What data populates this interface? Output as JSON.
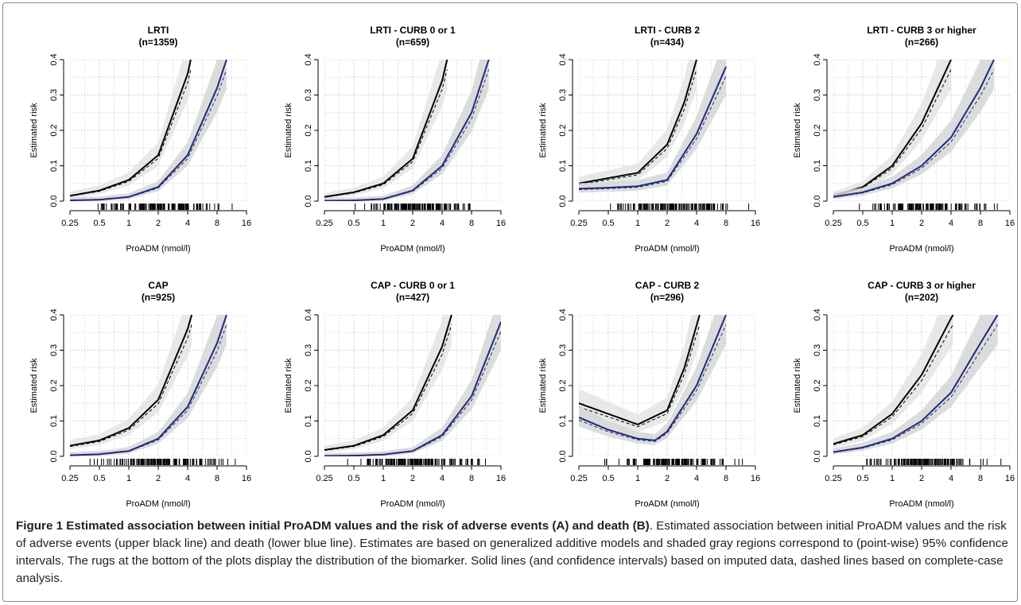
{
  "chart_data": [
    {
      "type": "line",
      "title": "LRTI",
      "subtitle": "(n=1359)",
      "xlabel": "ProADM (nmol/l)",
      "ylabel": "Estimated risk",
      "xscale": "log2",
      "xlim": [
        0.25,
        16
      ],
      "ylim": [
        0,
        0.4
      ],
      "xticks": [
        "0.25",
        "0.5",
        "1",
        "2",
        "4",
        "8",
        "16"
      ],
      "yticks": [
        "0.0",
        "0.1",
        "0.2",
        "0.3",
        "0.4"
      ],
      "grid": true,
      "series": [
        {
          "role": "adverse events",
          "line": "solid",
          "color": "#000000",
          "x": [
            0.25,
            0.5,
            1,
            2,
            4,
            4.3
          ],
          "y": [
            0.015,
            0.03,
            0.06,
            0.13,
            0.36,
            0.4
          ]
        },
        {
          "role": "death",
          "line": "solid",
          "color": "#1f2a7a",
          "x": [
            0.25,
            0.5,
            1,
            2,
            4,
            8,
            10
          ],
          "y": [
            0.002,
            0.004,
            0.012,
            0.04,
            0.13,
            0.32,
            0.4
          ]
        }
      ]
    },
    {
      "type": "line",
      "title": "LRTI - CURB 0 or 1",
      "subtitle": "(n=659)",
      "xlabel": "ProADM (nmol/l)",
      "ylabel": "Estimated risk",
      "xscale": "log2",
      "xlim": [
        0.25,
        16
      ],
      "ylim": [
        0,
        0.4
      ],
      "xticks": [
        "0.25",
        "0.5",
        "1",
        "2",
        "4",
        "8",
        "16"
      ],
      "yticks": [
        "0.0",
        "0.1",
        "0.2",
        "0.3",
        "0.4"
      ],
      "grid": true,
      "series": [
        {
          "role": "adverse events",
          "line": "solid",
          "color": "#000000",
          "x": [
            0.25,
            0.5,
            1,
            2,
            4,
            4.5
          ],
          "y": [
            0.012,
            0.025,
            0.05,
            0.12,
            0.34,
            0.4
          ]
        },
        {
          "role": "death",
          "line": "solid",
          "color": "#1f2a7a",
          "x": [
            0.25,
            0.5,
            1,
            2,
            4,
            8,
            12
          ],
          "y": [
            0.001,
            0.002,
            0.006,
            0.03,
            0.1,
            0.25,
            0.4
          ]
        }
      ]
    },
    {
      "type": "line",
      "title": "LRTI - CURB 2",
      "subtitle": "(n=434)",
      "xlabel": "ProADM (nmol/l)",
      "ylabel": "Estimated risk",
      "xscale": "log2",
      "xlim": [
        0.25,
        16
      ],
      "ylim": [
        0,
        0.4
      ],
      "xticks": [
        "0.25",
        "0.5",
        "1",
        "2",
        "4",
        "8",
        "16"
      ],
      "yticks": [
        "0.0",
        "0.1",
        "0.2",
        "0.3",
        "0.4"
      ],
      "grid": true,
      "series": [
        {
          "role": "adverse events",
          "line": "solid",
          "color": "#000000",
          "x": [
            0.25,
            0.5,
            1,
            2,
            3,
            4
          ],
          "y": [
            0.05,
            0.065,
            0.08,
            0.16,
            0.28,
            0.4
          ]
        },
        {
          "role": "death",
          "line": "solid",
          "color": "#1f2a7a",
          "x": [
            0.25,
            0.5,
            1,
            2,
            4,
            8
          ],
          "y": [
            0.035,
            0.038,
            0.042,
            0.06,
            0.19,
            0.38
          ]
        }
      ]
    },
    {
      "type": "line",
      "title": "LRTI - CURB 3 or higher",
      "subtitle": "(n=266)",
      "xlabel": "ProADM (nmol/l)",
      "ylabel": "Estimated risk",
      "xscale": "log2",
      "xlim": [
        0.25,
        16
      ],
      "ylim": [
        0,
        0.4
      ],
      "xticks": [
        "0.25",
        "0.5",
        "1",
        "2",
        "4",
        "8",
        "16"
      ],
      "yticks": [
        "0.0",
        "0.1",
        "0.2",
        "0.3",
        "0.4"
      ],
      "grid": true,
      "series": [
        {
          "role": "adverse events",
          "line": "solid",
          "color": "#000000",
          "x": [
            0.25,
            0.5,
            1,
            2,
            4
          ],
          "y": [
            0.015,
            0.04,
            0.1,
            0.22,
            0.4
          ]
        },
        {
          "role": "death",
          "line": "solid",
          "color": "#1f2a7a",
          "x": [
            0.25,
            0.5,
            1,
            2,
            4,
            8,
            11
          ],
          "y": [
            0.012,
            0.025,
            0.05,
            0.1,
            0.18,
            0.32,
            0.4
          ]
        }
      ]
    },
    {
      "type": "line",
      "title": "CAP",
      "subtitle": "(n=925)",
      "xlabel": "ProADM (nmol/l)",
      "ylabel": "Estimated risk",
      "xscale": "log2",
      "xlim": [
        0.25,
        16
      ],
      "ylim": [
        0,
        0.4
      ],
      "xticks": [
        "0.25",
        "0.5",
        "1",
        "2",
        "4",
        "8",
        "16"
      ],
      "yticks": [
        "0.0",
        "0.1",
        "0.2",
        "0.3",
        "0.4"
      ],
      "grid": true,
      "series": [
        {
          "role": "adverse events",
          "line": "solid",
          "color": "#000000",
          "x": [
            0.25,
            0.5,
            1,
            2,
            4,
            4.4
          ],
          "y": [
            0.03,
            0.045,
            0.08,
            0.16,
            0.36,
            0.4
          ]
        },
        {
          "role": "death",
          "line": "solid",
          "color": "#1f2a7a",
          "x": [
            0.25,
            0.5,
            1,
            2,
            4,
            8,
            10
          ],
          "y": [
            0.003,
            0.006,
            0.015,
            0.05,
            0.14,
            0.32,
            0.4
          ]
        }
      ]
    },
    {
      "type": "line",
      "title": "CAP - CURB 0 or 1",
      "subtitle": "(n=427)",
      "xlabel": "ProADM (nmol/l)",
      "ylabel": "Estimated risk",
      "xscale": "log2",
      "xlim": [
        0.25,
        16
      ],
      "ylim": [
        0,
        0.4
      ],
      "xticks": [
        "0.25",
        "0.5",
        "1",
        "2",
        "4",
        "8",
        "16"
      ],
      "yticks": [
        "0.0",
        "0.1",
        "0.2",
        "0.3",
        "0.4"
      ],
      "grid": true,
      "series": [
        {
          "role": "adverse events",
          "line": "solid",
          "color": "#000000",
          "x": [
            0.25,
            0.5,
            1,
            2,
            4,
            5
          ],
          "y": [
            0.018,
            0.03,
            0.06,
            0.13,
            0.31,
            0.4
          ]
        },
        {
          "role": "death",
          "line": "solid",
          "color": "#1f2a7a",
          "x": [
            0.25,
            0.5,
            1,
            2,
            4,
            8,
            16
          ],
          "y": [
            0.001,
            0.002,
            0.005,
            0.015,
            0.06,
            0.17,
            0.38
          ]
        }
      ]
    },
    {
      "type": "line",
      "title": "CAP - CURB 2",
      "subtitle": "(n=296)",
      "xlabel": "ProADM (nmol/l)",
      "ylabel": "Estimated risk",
      "xscale": "log2",
      "xlim": [
        0.25,
        16
      ],
      "ylim": [
        0,
        0.4
      ],
      "xticks": [
        "0.25",
        "0.5",
        "1",
        "2",
        "4",
        "8",
        "16"
      ],
      "yticks": [
        "0.0",
        "0.1",
        "0.2",
        "0.3",
        "0.4"
      ],
      "grid": true,
      "series": [
        {
          "role": "adverse events",
          "line": "solid",
          "color": "#000000",
          "x": [
            0.25,
            0.5,
            1,
            2,
            3,
            4.3
          ],
          "y": [
            0.15,
            0.12,
            0.09,
            0.13,
            0.25,
            0.4
          ]
        },
        {
          "role": "death",
          "line": "solid",
          "color": "#1f2a7a",
          "x": [
            0.25,
            0.5,
            1,
            1.5,
            2,
            4,
            8
          ],
          "y": [
            0.11,
            0.075,
            0.05,
            0.045,
            0.07,
            0.2,
            0.4
          ]
        }
      ]
    },
    {
      "type": "line",
      "title": "CAP - CURB 3 or higher",
      "subtitle": "(n=202)",
      "xlabel": "ProADM (nmol/l)",
      "ylabel": "Estimated risk",
      "xscale": "log2",
      "xlim": [
        0.25,
        16
      ],
      "ylim": [
        0,
        0.4
      ],
      "xticks": [
        "0.25",
        "0.5",
        "1",
        "2",
        "4",
        "8",
        "16"
      ],
      "yticks": [
        "0.0",
        "0.1",
        "0.2",
        "0.3",
        "0.4"
      ],
      "grid": true,
      "series": [
        {
          "role": "adverse events",
          "line": "solid",
          "color": "#000000",
          "x": [
            0.25,
            0.5,
            1,
            2,
            4,
            4.2
          ],
          "y": [
            0.035,
            0.06,
            0.12,
            0.23,
            0.39,
            0.4
          ]
        },
        {
          "role": "death",
          "line": "solid",
          "color": "#1f2a7a",
          "x": [
            0.25,
            0.5,
            1,
            2,
            4,
            8,
            12
          ],
          "y": [
            0.012,
            0.025,
            0.05,
            0.1,
            0.18,
            0.32,
            0.4
          ]
        }
      ]
    }
  ],
  "caption": {
    "lead": "Figure 1 Estimated association between initial ProADM values and the risk of adverse events (A) and death (B)",
    "body": ". Estimated association between initial ProADM values and the risk of adverse events (upper black line) and death (lower blue line). Estimates are based on generalized additive models and shaded gray regions correspond to (point-wise) 95% confidence intervals. The rugs at the bottom of the plots display the distribution of the biomarker. Solid lines (and confidence intervals) based on imputed data, dashed lines based on complete-case analysis."
  }
}
